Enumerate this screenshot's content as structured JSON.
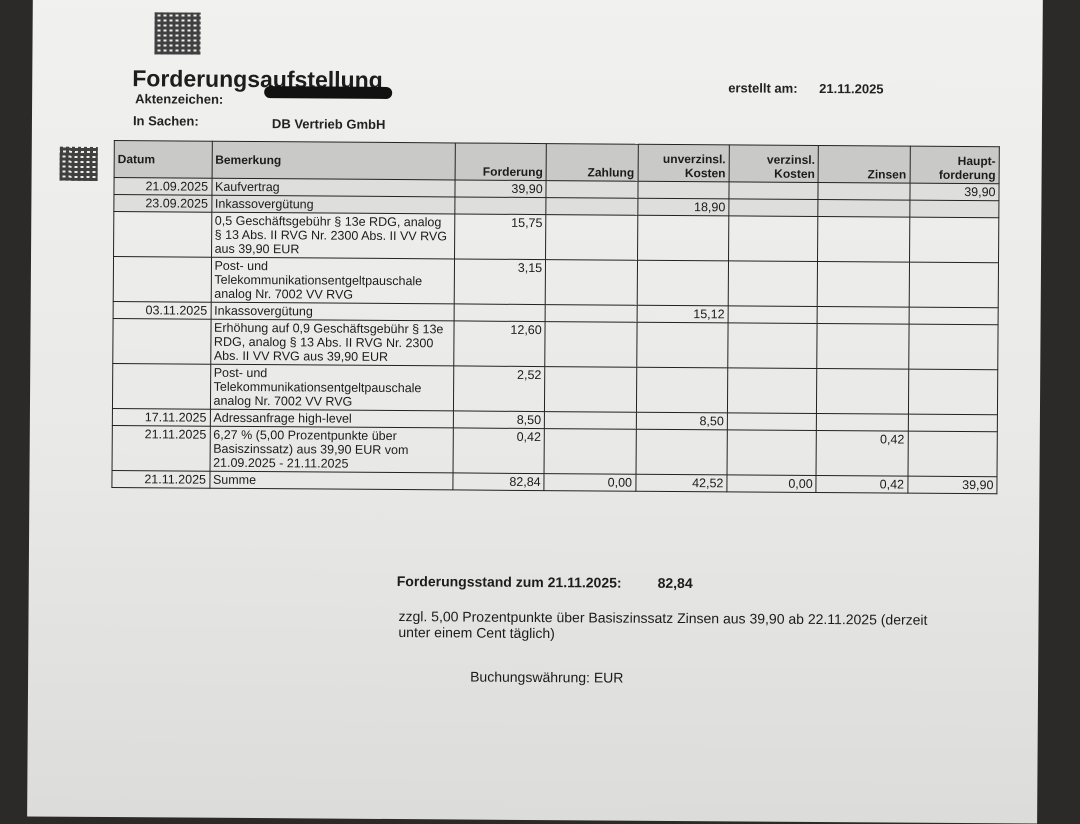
{
  "header": {
    "title": "Forderungsaufstellung",
    "aktenzeichen_label": "Aktenzeichen:",
    "in_sachen_label": "In Sachen:",
    "in_sachen_value": "DB Vertrieb GmbH",
    "erstellt_label": "erstellt am:",
    "erstellt_value": "21.11.2025"
  },
  "table": {
    "columns": [
      "Datum",
      "Bemerkung",
      "Forderung",
      "Zahlung",
      "unverzinsl. Kosten",
      "verzinsl. Kosten",
      "Zinsen",
      "Haupt- forderung"
    ],
    "rows": [
      {
        "datum": "21.09.2025",
        "bemerkung": "Kaufvertrag",
        "forderung": "39,90",
        "zahlung": "",
        "unverzinsl": "",
        "verzinsl": "",
        "zinsen": "",
        "haupt": "39,90"
      },
      {
        "datum": "23.09.2025",
        "bemerkung": "Inkassovergütung",
        "forderung": "",
        "zahlung": "",
        "unverzinsl": "18,90",
        "verzinsl": "",
        "zinsen": "",
        "haupt": ""
      },
      {
        "datum": "",
        "bemerkung": "0,5 Geschäftsgebühr § 13e RDG, analog § 13 Abs. II RVG Nr. 2300 Abs. II VV RVG aus 39,90 EUR",
        "forderung": "15,75",
        "zahlung": "",
        "unverzinsl": "",
        "verzinsl": "",
        "zinsen": "",
        "haupt": ""
      },
      {
        "datum": "",
        "bemerkung": "Post- und Telekommunikationsentgeltpauschale analog Nr. 7002 VV RVG",
        "forderung": "3,15",
        "zahlung": "",
        "unverzinsl": "",
        "verzinsl": "",
        "zinsen": "",
        "haupt": ""
      },
      {
        "datum": "03.11.2025",
        "bemerkung": "Inkassovergütung",
        "forderung": "",
        "zahlung": "",
        "unverzinsl": "15,12",
        "verzinsl": "",
        "zinsen": "",
        "haupt": ""
      },
      {
        "datum": "",
        "bemerkung": "Erhöhung auf 0,9 Geschäftsgebühr § 13e RDG, analog § 13 Abs. II RVG Nr. 2300 Abs. II VV RVG aus 39,90 EUR",
        "forderung": "12,60",
        "zahlung": "",
        "unverzinsl": "",
        "verzinsl": "",
        "zinsen": "",
        "haupt": ""
      },
      {
        "datum": "",
        "bemerkung": "Post- und Telekommunikationsentgeltpauschale analog Nr. 7002 VV RVG",
        "forderung": "2,52",
        "zahlung": "",
        "unverzinsl": "",
        "verzinsl": "",
        "zinsen": "",
        "haupt": ""
      },
      {
        "datum": "17.11.2025",
        "bemerkung": "Adressanfrage high-level",
        "forderung": "8,50",
        "zahlung": "",
        "unverzinsl": "8,50",
        "verzinsl": "",
        "zinsen": "",
        "haupt": ""
      },
      {
        "datum": "21.11.2025",
        "bemerkung": "6,27 % (5,00 Prozentpunkte über Basiszinssatz) aus 39,90 EUR vom 21.09.2025 - 21.11.2025",
        "forderung": "0,42",
        "zahlung": "",
        "unverzinsl": "",
        "verzinsl": "",
        "zinsen": "0,42",
        "haupt": ""
      },
      {
        "datum": "21.11.2025",
        "bemerkung": "Summe",
        "forderung": "82,84",
        "zahlung": "0,00",
        "unverzinsl": "42,52",
        "verzinsl": "0,00",
        "zinsen": "0,42",
        "haupt": "39,90"
      }
    ]
  },
  "footer": {
    "stand_label": "Forderungsstand zum 21.11.2025:",
    "stand_value": "82,84",
    "zinsen_note": "zzgl. 5,00 Prozentpunkte über Basiszinssatz Zinsen aus 39,90 ab 22.11.2025 (derzeit unter einem Cent täglich)",
    "waehrung": "Buchungswährung: EUR"
  }
}
